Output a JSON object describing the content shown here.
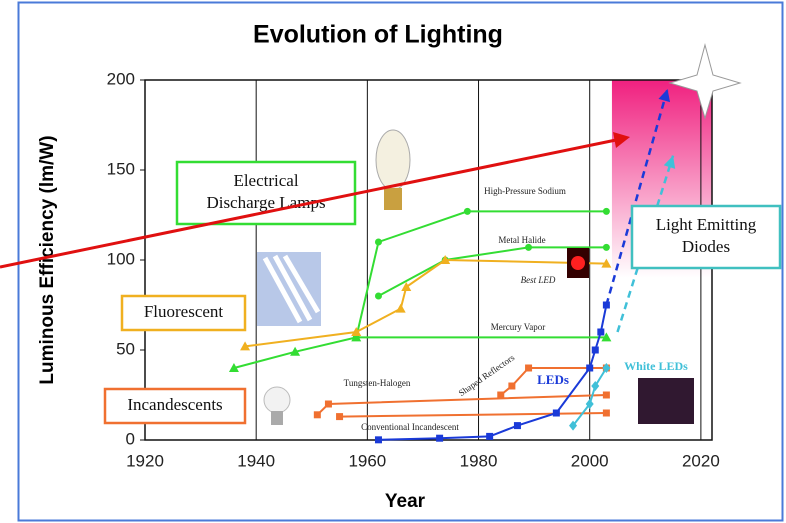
{
  "chart_data": {
    "type": "line",
    "title": "Evolution of Lighting",
    "x_label": "Year",
    "y_label": "Luminous Efficiency (lm/W)",
    "xlim": [
      1920,
      2022
    ],
    "xticks": [
      1920,
      1940,
      1960,
      1980,
      2000,
      2020
    ],
    "ylim": [
      0,
      200
    ],
    "yticks": [
      0,
      50,
      100,
      150,
      200
    ],
    "grid": "x",
    "series": [
      {
        "name": "High-Pressure Sodium",
        "color": "#33dd33",
        "marker": "circle",
        "x": [
          1958,
          1962,
          1978,
          2003
        ],
        "values": [
          57,
          110,
          127,
          127
        ]
      },
      {
        "name": "Metal Halide",
        "color": "#33dd33",
        "marker": "circle",
        "x": [
          1962,
          1974,
          1989,
          2003
        ],
        "values": [
          80,
          100,
          107,
          107
        ]
      },
      {
        "name": "Mercury Vapor",
        "color": "#33dd33",
        "marker": "triangle",
        "x": [
          1936,
          1947,
          1958,
          2003
        ],
        "values": [
          40,
          49,
          57,
          57
        ]
      },
      {
        "name": "Fluorescent",
        "color": "#f0b020",
        "marker": "triangle",
        "x": [
          1938,
          1958,
          1966,
          1967,
          1974,
          2003
        ],
        "values": [
          52,
          60,
          73,
          85,
          100,
          98
        ]
      },
      {
        "name": "Tungsten-Halogen",
        "color": "#f07030",
        "marker": "square",
        "x": [
          1951,
          1953,
          2003
        ],
        "values": [
          14,
          20,
          25
        ]
      },
      {
        "name": "Conventional Incandescent",
        "color": "#f07030",
        "marker": "square",
        "x": [
          1955,
          2003
        ],
        "values": [
          13,
          15
        ]
      },
      {
        "name": "Shaped Reflectors",
        "color": "#f07030",
        "marker": "square",
        "x": [
          1984,
          1986,
          1989,
          2003
        ],
        "values": [
          25,
          30,
          40,
          40
        ]
      },
      {
        "name": "LEDs",
        "color": "#1a3ad8",
        "marker": "square",
        "x": [
          1962,
          1973,
          1982,
          1987,
          1994,
          2000,
          2001,
          2002,
          2003
        ],
        "values": [
          0.1,
          1,
          2,
          8,
          15,
          40,
          50,
          60,
          75
        ]
      },
      {
        "name": "White LEDs",
        "color": "#40c0d8",
        "marker": "diamond",
        "x": [
          1997,
          2000,
          2001,
          2003
        ],
        "values": [
          8,
          20,
          30,
          40
        ]
      }
    ],
    "projections": [
      {
        "color": "#1a3ad8",
        "x": [
          2003,
          2014
        ],
        "values": [
          75,
          195
        ]
      },
      {
        "color": "#40c0d8",
        "x": [
          2005,
          2015
        ],
        "values": [
          60,
          158
        ]
      }
    ],
    "shaded_region": {
      "x": [
        2004,
        2022
      ]
    },
    "annotations": [
      {
        "lines": [
          "Electrical",
          "Discharge Lamps"
        ],
        "color": "#33dd33"
      },
      {
        "lines": [
          "Fluorescent"
        ],
        "color": "#f0b020"
      },
      {
        "lines": [
          "Incandescents"
        ],
        "color": "#f07030"
      },
      {
        "lines": [
          "Light Emitting",
          "Diodes"
        ],
        "color": "#40c0c0"
      },
      {
        "lines": [
          "Best LED"
        ],
        "color": "#000000"
      }
    ]
  }
}
